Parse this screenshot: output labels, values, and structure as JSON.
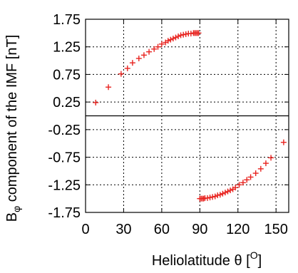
{
  "chart_data": {
    "type": "scatter",
    "title": "",
    "xlabel": "Heliolatitude θ [O]",
    "xlabel_parts": {
      "main": "Heliolatitude θ [",
      "sup": "O",
      "end": "]"
    },
    "ylabel": "Bφ component of the IMF [nT]",
    "ylabel_parts": {
      "main": "B",
      "sub": "φ",
      "end": " component of the IMF [nT]"
    },
    "xlim": [
      0,
      160
    ],
    "ylim": [
      -1.75,
      1.75
    ],
    "x_ticks": [
      0,
      30,
      60,
      90,
      120,
      150
    ],
    "x_tick_labels": [
      "0",
      "30",
      "60",
      "90",
      "120",
      "150"
    ],
    "y_ticks": [
      1.75,
      1.25,
      0.75,
      0.25,
      -0.25,
      -0.75,
      -1.25,
      -1.75
    ],
    "y_tick_labels": [
      "1.75",
      "1.25",
      "0.75",
      "0.25",
      "-0.25",
      "-0.75",
      "-1.25",
      "-1.75"
    ],
    "grid": true,
    "zero_line": 0,
    "marker": "+",
    "series": [
      {
        "color": "#e8231f",
        "points": [
          [
            8,
            0.24
          ],
          [
            18,
            0.52
          ],
          [
            28,
            0.76
          ],
          [
            33,
            0.86
          ],
          [
            37,
            0.96
          ],
          [
            42,
            1.04
          ],
          [
            46,
            1.1
          ],
          [
            50,
            1.16
          ],
          [
            54,
            1.21
          ],
          [
            57,
            1.25
          ],
          [
            60,
            1.3
          ],
          [
            63,
            1.33
          ],
          [
            65,
            1.36
          ],
          [
            67,
            1.38
          ],
          [
            69,
            1.4
          ],
          [
            71,
            1.42
          ],
          [
            73,
            1.44
          ],
          [
            75,
            1.46
          ],
          [
            77,
            1.47
          ],
          [
            79,
            1.48
          ],
          [
            81,
            1.49
          ],
          [
            83,
            1.49
          ],
          [
            85,
            1.5
          ],
          [
            86,
            1.5
          ],
          [
            87,
            1.5
          ],
          [
            88,
            1.5
          ],
          [
            89,
            1.5
          ],
          [
            90,
            -1.5
          ],
          [
            91,
            -1.5
          ],
          [
            92,
            -1.5
          ],
          [
            93,
            -1.5
          ],
          [
            94,
            -1.49
          ],
          [
            96,
            -1.49
          ],
          [
            98,
            -1.48
          ],
          [
            100,
            -1.47
          ],
          [
            102,
            -1.46
          ],
          [
            104,
            -1.44
          ],
          [
            106,
            -1.43
          ],
          [
            108,
            -1.41
          ],
          [
            110,
            -1.39
          ],
          [
            112,
            -1.37
          ],
          [
            114,
            -1.35
          ],
          [
            116,
            -1.33
          ],
          [
            118,
            -1.3
          ],
          [
            121,
            -1.25
          ],
          [
            124,
            -1.21
          ],
          [
            127,
            -1.16
          ],
          [
            130,
            -1.11
          ],
          [
            134,
            -1.04
          ],
          [
            138,
            -0.96
          ],
          [
            142,
            -0.86
          ],
          [
            146,
            -0.76
          ],
          [
            156,
            -0.48
          ]
        ]
      }
    ]
  }
}
